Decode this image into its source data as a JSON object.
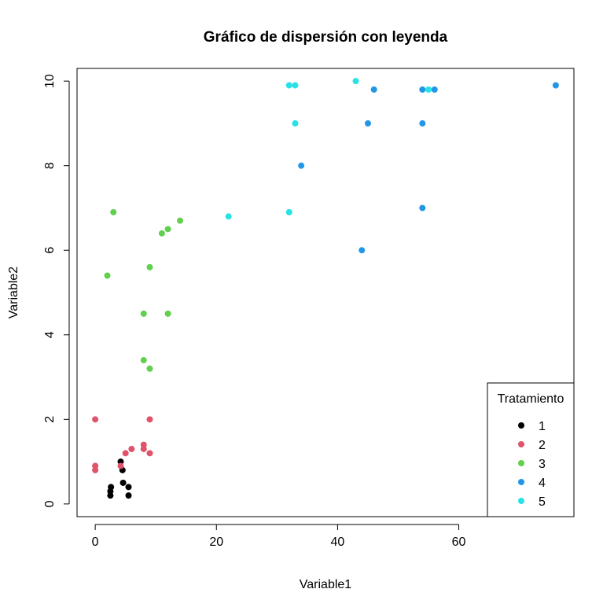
{
  "chart_data": {
    "type": "scatter",
    "title": "Gráfico de dispersión con leyenda",
    "xlabel": "Variable1",
    "ylabel": "Variable2",
    "xlim": [
      -3,
      79
    ],
    "ylim": [
      -0.3,
      10.3
    ],
    "xticks": [
      0,
      20,
      40,
      60
    ],
    "yticks": [
      0,
      2,
      4,
      6,
      8,
      10
    ],
    "grid": false,
    "legend": {
      "title": "Tratamiento",
      "position": "bottom-right"
    },
    "series": [
      {
        "name": "1",
        "color": "#000000",
        "points": [
          [
            2.5,
            0.2
          ],
          [
            2.5,
            0.3
          ],
          [
            2.6,
            0.4
          ],
          [
            4.2,
            1.0
          ],
          [
            4.5,
            0.8
          ],
          [
            4.6,
            0.5
          ],
          [
            5.5,
            0.4
          ],
          [
            5.5,
            0.2
          ]
        ]
      },
      {
        "name": "2",
        "color": "#DF536B",
        "points": [
          [
            0,
            2.0
          ],
          [
            0,
            0.9
          ],
          [
            0,
            0.8
          ],
          [
            4.2,
            0.9
          ],
          [
            5.0,
            1.2
          ],
          [
            6.0,
            1.3
          ],
          [
            8.0,
            1.4
          ],
          [
            8.0,
            1.3
          ],
          [
            9.0,
            1.2
          ],
          [
            9.0,
            2.0
          ]
        ]
      },
      {
        "name": "3",
        "color": "#61D04F",
        "points": [
          [
            3.0,
            6.9
          ],
          [
            2.0,
            5.4
          ],
          [
            8.0,
            4.5
          ],
          [
            8.0,
            3.4
          ],
          [
            9.0,
            3.2
          ],
          [
            9.0,
            5.6
          ],
          [
            11.0,
            6.4
          ],
          [
            12.0,
            6.5
          ],
          [
            12.0,
            4.5
          ],
          [
            14.0,
            6.7
          ]
        ]
      },
      {
        "name": "4",
        "color": "#2297E6",
        "points": [
          [
            34.0,
            8.0
          ],
          [
            44.0,
            6.0
          ],
          [
            45.0,
            9.0
          ],
          [
            46.0,
            9.8
          ],
          [
            54.0,
            9.8
          ],
          [
            54.0,
            9.0
          ],
          [
            54.0,
            7.0
          ],
          [
            56.0,
            9.8
          ],
          [
            76.0,
            9.9
          ]
        ]
      },
      {
        "name": "5",
        "color": "#28E2E5",
        "points": [
          [
            22.0,
            6.8
          ],
          [
            32.0,
            6.9
          ],
          [
            32.0,
            9.9
          ],
          [
            33.0,
            9.9
          ],
          [
            33.0,
            9.0
          ],
          [
            43.0,
            10.0
          ],
          [
            55.0,
            9.8
          ]
        ]
      }
    ]
  }
}
